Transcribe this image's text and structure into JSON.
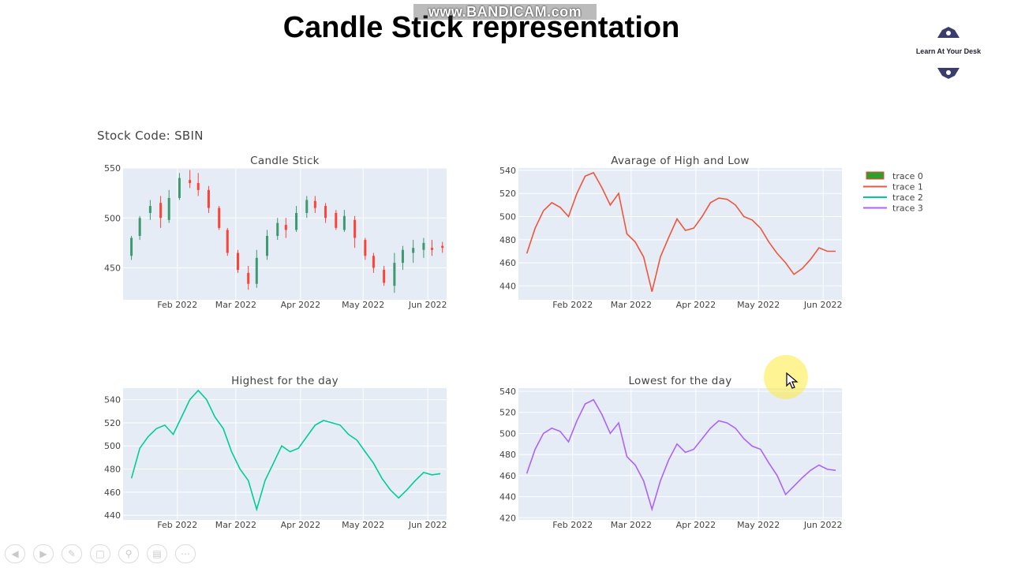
{
  "slide": {
    "title": "Candle Stick representation",
    "watermark": "www.BANDICAM.com",
    "logo_text": "Learn At Your Desk"
  },
  "header": {
    "stock_code_label": "Stock Code: SBIN"
  },
  "toolbar": {
    "icons": [
      "prev-icon",
      "next-icon",
      "pen-icon",
      "copy-icon",
      "zoom-icon",
      "screen-icon",
      "more-icon"
    ]
  },
  "legend": {
    "entries": [
      {
        "label": "trace 0",
        "color": "#2ca02c"
      },
      {
        "label": "trace 1",
        "color": "#ef553b"
      },
      {
        "label": "trace 2",
        "color": "#00cc96"
      },
      {
        "label": "trace 3",
        "color": "#ab63fa"
      }
    ]
  },
  "chart_data": [
    {
      "type": "candlestick",
      "title": "Candle Stick",
      "xlabel": "",
      "ylabel": "",
      "x_ticks": [
        "Feb 2022",
        "Mar 2022",
        "Apr 2022",
        "May 2022",
        "Jun 2022"
      ],
      "y_ticks": [
        450,
        500,
        550
      ],
      "ylim": [
        418,
        550
      ],
      "colors": {
        "increasing": "#3d9970",
        "decreasing": "#ff4136"
      },
      "x": [
        "2022-01-10",
        "2022-01-14",
        "2022-01-19",
        "2022-01-24",
        "2022-01-28",
        "2022-02-02",
        "2022-02-07",
        "2022-02-11",
        "2022-02-16",
        "2022-02-21",
        "2022-02-25",
        "2022-03-02",
        "2022-03-07",
        "2022-03-11",
        "2022-03-16",
        "2022-03-21",
        "2022-03-25",
        "2022-03-30",
        "2022-04-04",
        "2022-04-08",
        "2022-04-13",
        "2022-04-18",
        "2022-04-22",
        "2022-04-27",
        "2022-05-02",
        "2022-05-06",
        "2022-05-11",
        "2022-05-16",
        "2022-05-20",
        "2022-05-25",
        "2022-05-30",
        "2022-06-03",
        "2022-06-08"
      ],
      "open": [
        462,
        482,
        505,
        515,
        498,
        520,
        538,
        535,
        528,
        510,
        488,
        465,
        445,
        434,
        462,
        482,
        493,
        488,
        505,
        517,
        512,
        505,
        488,
        498,
        478,
        462,
        448,
        432,
        455,
        465,
        468,
        470,
        472
      ],
      "high": [
        482,
        502,
        518,
        522,
        528,
        545,
        548,
        545,
        532,
        512,
        490,
        468,
        452,
        468,
        488,
        500,
        500,
        512,
        522,
        522,
        515,
        508,
        508,
        502,
        480,
        465,
        452,
        465,
        472,
        478,
        480,
        478,
        476
      ],
      "low": [
        458,
        478,
        498,
        490,
        495,
        518,
        530,
        522,
        505,
        488,
        462,
        445,
        428,
        430,
        458,
        478,
        480,
        486,
        500,
        505,
        495,
        488,
        486,
        470,
        458,
        445,
        432,
        425,
        448,
        455,
        460,
        462,
        465
      ],
      "close": [
        480,
        500,
        512,
        500,
        520,
        540,
        535,
        528,
        510,
        490,
        465,
        448,
        434,
        460,
        482,
        495,
        488,
        505,
        518,
        510,
        500,
        490,
        502,
        480,
        462,
        450,
        435,
        455,
        468,
        470,
        475,
        468,
        470
      ]
    },
    {
      "type": "line",
      "title": "Avarage of High and Low",
      "series": [
        {
          "name": "trace 1",
          "color": "#ef553b"
        }
      ],
      "x_ticks": [
        "Feb 2022",
        "Mar 2022",
        "Apr 2022",
        "May 2022",
        "Jun 2022"
      ],
      "y_ticks": [
        440,
        460,
        480,
        500,
        520,
        540
      ],
      "ylim": [
        428,
        542
      ],
      "x": [
        "2022-01-10",
        "2022-01-14",
        "2022-01-18",
        "2022-01-22",
        "2022-01-26",
        "2022-01-30",
        "2022-02-03",
        "2022-02-07",
        "2022-02-11",
        "2022-02-15",
        "2022-02-19",
        "2022-02-23",
        "2022-02-27",
        "2022-03-03",
        "2022-03-07",
        "2022-03-11",
        "2022-03-15",
        "2022-03-19",
        "2022-03-23",
        "2022-03-27",
        "2022-03-31",
        "2022-04-04",
        "2022-04-08",
        "2022-04-12",
        "2022-04-16",
        "2022-04-20",
        "2022-04-24",
        "2022-04-28",
        "2022-05-02",
        "2022-05-06",
        "2022-05-10",
        "2022-05-14",
        "2022-05-18",
        "2022-05-22",
        "2022-05-26",
        "2022-05-30",
        "2022-06-03",
        "2022-06-07"
      ],
      "y": [
        468,
        490,
        505,
        512,
        508,
        500,
        520,
        535,
        538,
        525,
        510,
        520,
        485,
        478,
        465,
        435,
        465,
        482,
        498,
        488,
        490,
        500,
        512,
        516,
        515,
        510,
        500,
        497,
        490,
        478,
        468,
        460,
        450,
        455,
        463,
        473,
        470,
        470
      ]
    },
    {
      "type": "line",
      "title": "Highest for the day",
      "series": [
        {
          "name": "trace 2",
          "color": "#00cc96"
        }
      ],
      "x_ticks": [
        "Feb 2022",
        "Mar 2022",
        "Apr 2022",
        "May 2022",
        "Jun 2022"
      ],
      "y_ticks": [
        440,
        460,
        480,
        500,
        520,
        540
      ],
      "ylim": [
        436,
        550
      ],
      "x": [
        "2022-01-10",
        "2022-01-14",
        "2022-01-18",
        "2022-01-22",
        "2022-01-26",
        "2022-01-30",
        "2022-02-03",
        "2022-02-07",
        "2022-02-11",
        "2022-02-15",
        "2022-02-19",
        "2022-02-23",
        "2022-02-27",
        "2022-03-03",
        "2022-03-07",
        "2022-03-11",
        "2022-03-15",
        "2022-03-19",
        "2022-03-23",
        "2022-03-27",
        "2022-03-31",
        "2022-04-04",
        "2022-04-08",
        "2022-04-12",
        "2022-04-16",
        "2022-04-20",
        "2022-04-24",
        "2022-04-28",
        "2022-05-02",
        "2022-05-06",
        "2022-05-10",
        "2022-05-14",
        "2022-05-18",
        "2022-05-22",
        "2022-05-26",
        "2022-05-30",
        "2022-06-03",
        "2022-06-07"
      ],
      "y": [
        472,
        498,
        508,
        515,
        518,
        510,
        525,
        540,
        548,
        540,
        525,
        515,
        495,
        480,
        470,
        445,
        470,
        485,
        500,
        495,
        498,
        508,
        518,
        522,
        520,
        518,
        510,
        505,
        495,
        485,
        472,
        462,
        455,
        462,
        470,
        477,
        475,
        476
      ]
    },
    {
      "type": "line",
      "title": "Lowest for the day",
      "series": [
        {
          "name": "trace 3",
          "color": "#ab63fa"
        }
      ],
      "x_ticks": [
        "Feb 2022",
        "Mar 2022",
        "Apr 2022",
        "May 2022",
        "Jun 2022"
      ],
      "y_ticks": [
        420,
        440,
        460,
        480,
        500,
        520,
        540
      ],
      "ylim": [
        418,
        543
      ],
      "x": [
        "2022-01-10",
        "2022-01-14",
        "2022-01-18",
        "2022-01-22",
        "2022-01-26",
        "2022-01-30",
        "2022-02-03",
        "2022-02-07",
        "2022-02-11",
        "2022-02-15",
        "2022-02-19",
        "2022-02-23",
        "2022-02-27",
        "2022-03-03",
        "2022-03-07",
        "2022-03-11",
        "2022-03-15",
        "2022-03-19",
        "2022-03-23",
        "2022-03-27",
        "2022-03-31",
        "2022-04-04",
        "2022-04-08",
        "2022-04-12",
        "2022-04-16",
        "2022-04-20",
        "2022-04-24",
        "2022-04-28",
        "2022-05-02",
        "2022-05-06",
        "2022-05-10",
        "2022-05-14",
        "2022-05-18",
        "2022-05-22",
        "2022-05-26",
        "2022-05-30",
        "2022-06-03",
        "2022-06-07"
      ],
      "y": [
        462,
        485,
        500,
        505,
        502,
        492,
        512,
        528,
        532,
        518,
        500,
        510,
        478,
        470,
        455,
        428,
        455,
        475,
        490,
        482,
        485,
        495,
        505,
        512,
        510,
        505,
        495,
        488,
        485,
        472,
        460,
        442,
        450,
        458,
        465,
        470,
        466,
        465
      ]
    }
  ]
}
